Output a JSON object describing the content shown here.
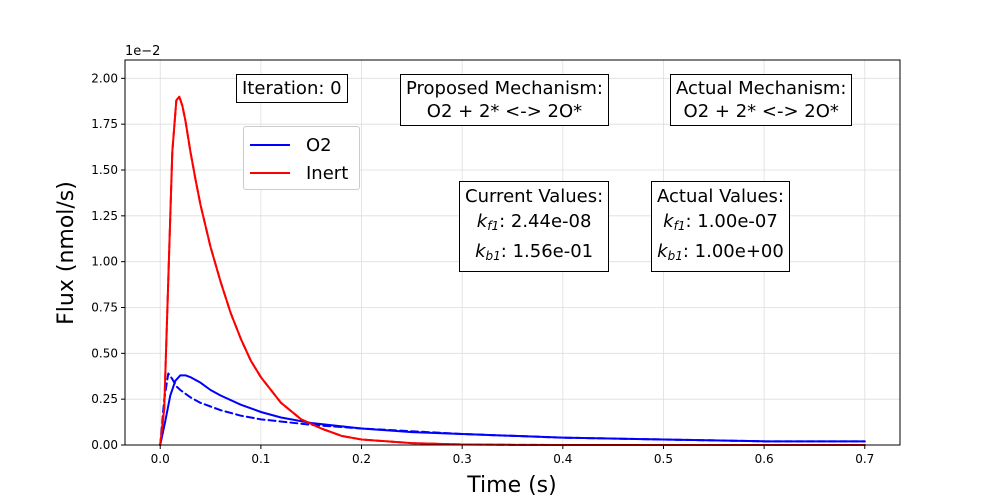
{
  "chart_data": {
    "type": "line",
    "xlabel": "Time (s)",
    "ylabel": "Flux (nmol/s)",
    "y_offset_label": "1e−2",
    "xlim": [
      -0.035,
      0.735
    ],
    "ylim": [
      0,
      0.021
    ],
    "x_ticks": [
      0.0,
      0.1,
      0.2,
      0.3,
      0.4,
      0.5,
      0.6,
      0.7
    ],
    "x_tick_labels": [
      "0.0",
      "0.1",
      "0.2",
      "0.3",
      "0.4",
      "0.5",
      "0.6",
      "0.7"
    ],
    "y_ticks": [
      0,
      0.0025,
      0.005,
      0.0075,
      0.01,
      0.0125,
      0.015,
      0.0175,
      0.02
    ],
    "y_tick_labels": [
      "0.00",
      "0.25",
      "0.50",
      "0.75",
      "1.00",
      "1.25",
      "1.50",
      "1.75",
      "2.00"
    ],
    "grid": true,
    "legend": {
      "placement": "upper-left",
      "entries": [
        "O2",
        "Inert"
      ]
    },
    "colors": {
      "o2": "#0000ff",
      "inert": "#ff0000"
    },
    "series": [
      {
        "name": "O2",
        "style": "solid",
        "color": "#0000ff",
        "x": [
          0,
          0.005,
          0.01,
          0.015,
          0.02,
          0.025,
          0.03,
          0.04,
          0.05,
          0.06,
          0.08,
          0.1,
          0.12,
          0.15,
          0.2,
          0.25,
          0.3,
          0.4,
          0.5,
          0.6,
          0.7
        ],
        "y": [
          0,
          0.0013,
          0.0027,
          0.0035,
          0.0038,
          0.0038,
          0.0037,
          0.0034,
          0.003,
          0.0027,
          0.0022,
          0.0018,
          0.0015,
          0.0012,
          0.0009,
          0.0007,
          0.0006,
          0.0004,
          0.0003,
          0.0002,
          0.0002
        ]
      },
      {
        "name": "",
        "style": "dashed",
        "color": "#0000ff",
        "x": [
          0,
          0.004,
          0.008,
          0.012,
          0.016,
          0.02,
          0.03,
          0.04,
          0.05,
          0.06,
          0.08,
          0.1,
          0.15,
          0.2,
          0.3,
          0.4,
          0.5,
          0.6,
          0.7
        ],
        "y": [
          0,
          0.0025,
          0.0039,
          0.0036,
          0.0032,
          0.003,
          0.0026,
          0.0023,
          0.0021,
          0.0019,
          0.0016,
          0.0014,
          0.0011,
          0.0009,
          0.0006,
          0.0004,
          0.0003,
          0.0002,
          0.0002
        ]
      },
      {
        "name": "Inert",
        "style": "solid",
        "color": "#ff0000",
        "x": [
          0,
          0.004,
          0.008,
          0.012,
          0.016,
          0.019,
          0.022,
          0.025,
          0.03,
          0.035,
          0.04,
          0.05,
          0.06,
          0.07,
          0.08,
          0.09,
          0.1,
          0.12,
          0.14,
          0.16,
          0.18,
          0.2,
          0.25,
          0.3,
          0.35,
          0.4,
          0.5,
          0.6,
          0.7
        ],
        "y": [
          0,
          0.002,
          0.009,
          0.016,
          0.0188,
          0.019,
          0.0185,
          0.0177,
          0.016,
          0.0145,
          0.0131,
          0.0108,
          0.0089,
          0.0072,
          0.0058,
          0.0046,
          0.0037,
          0.0023,
          0.0014,
          0.0009,
          0.0005,
          0.0003,
          0.0001,
          3e-05,
          1e-05,
          0,
          0,
          0,
          0
        ]
      },
      {
        "name": "",
        "style": "dashed",
        "color": "#ff0000",
        "x": [
          0,
          0.004,
          0.008,
          0.012,
          0.016,
          0.019,
          0.022,
          0.025,
          0.03,
          0.035,
          0.04,
          0.05,
          0.06,
          0.07,
          0.08,
          0.09,
          0.1,
          0.12,
          0.14,
          0.16,
          0.18,
          0.2,
          0.25,
          0.3,
          0.35,
          0.4,
          0.5,
          0.6,
          0.7
        ],
        "y": [
          0,
          0.002,
          0.009,
          0.016,
          0.0188,
          0.019,
          0.0185,
          0.0177,
          0.016,
          0.0145,
          0.0131,
          0.0108,
          0.0089,
          0.0072,
          0.0058,
          0.0046,
          0.0037,
          0.0023,
          0.0014,
          0.0009,
          0.0005,
          0.0003,
          0.0001,
          3e-05,
          1e-05,
          0,
          0,
          0,
          0
        ]
      }
    ],
    "annotations": {
      "iteration": "Iteration: 0",
      "proposed_title": "Proposed Mechanism:",
      "proposed_value": "O2 + 2* <-> 2O*",
      "actual_title": "Actual Mechanism:",
      "actual_value": "O2 + 2* <-> 2O*",
      "current_title": "Current Values:",
      "current_kf_sym": "k",
      "current_kf_sub": "f1",
      "current_kf_val": ": 2.44e-08",
      "current_kb_sym": "k",
      "current_kb_sub": "b1",
      "current_kb_val": ": 1.56e-01",
      "actualv_title": "Actual Values:",
      "actualv_kf_sym": "k",
      "actualv_kf_sub": "f1",
      "actualv_kf_val": ": 1.00e-07",
      "actualv_kb_sym": "k",
      "actualv_kb_sub": "b1",
      "actualv_kb_val": ": 1.00e+00"
    }
  }
}
